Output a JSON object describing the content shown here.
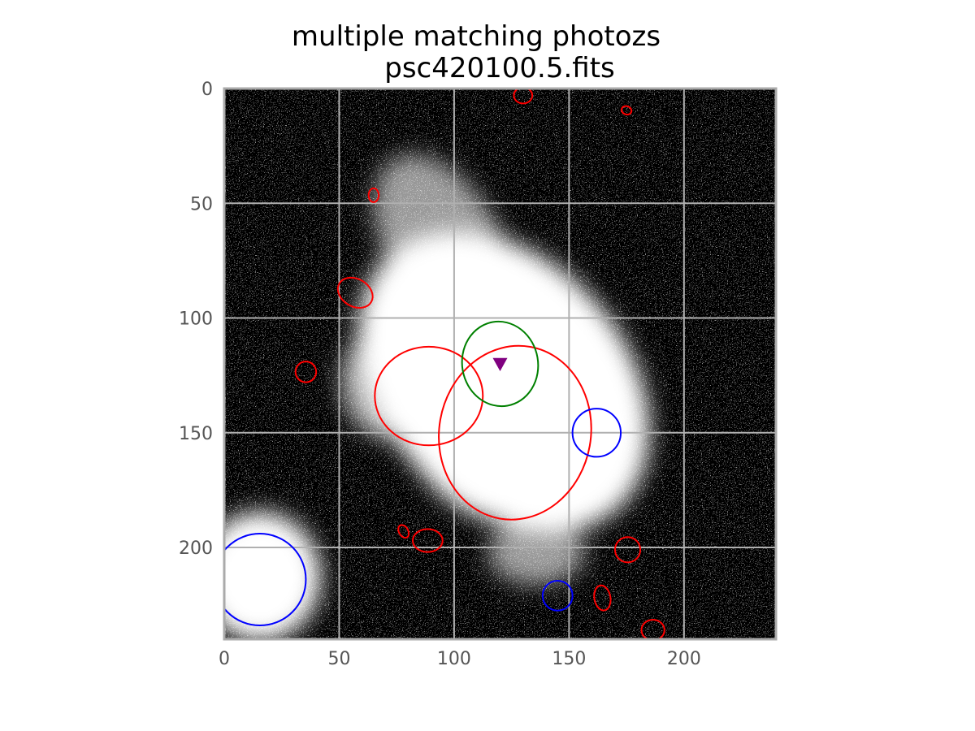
{
  "chart_data": {
    "type": "image",
    "title_lines": [
      "multiple matching photozs",
      "psc420100.5.fits"
    ],
    "xlim": [
      0,
      240
    ],
    "ylim": [
      240,
      0
    ],
    "y_inverted": true,
    "grid": true,
    "x_ticks": [
      0,
      50,
      100,
      150,
      200
    ],
    "y_ticks": [
      0,
      50,
      100,
      150,
      200
    ],
    "x_tick_labels": [
      "0",
      "50",
      "100",
      "150",
      "200"
    ],
    "y_tick_labels": [
      "0",
      "50",
      "100",
      "150",
      "200"
    ],
    "colors": {
      "red_ellipse": "#ff0000",
      "blue_circle": "#0000ff",
      "green_circle": "#008000",
      "marker": "#800080",
      "grid": "#b0b0b0",
      "frame": "#aaaaaa",
      "tick_label": "#555555"
    },
    "marker": {
      "shape": "down-triangle",
      "x": 120,
      "y": 120,
      "color": "#800080"
    },
    "green_ellipses": [
      {
        "x": 120,
        "y": 120,
        "rx": 16.5,
        "ry": 18.5,
        "angle": -10
      }
    ],
    "blue_circles": [
      {
        "x": 162,
        "y": 150,
        "r": 10.5
      },
      {
        "x": 15.5,
        "y": 214,
        "r": 20
      },
      {
        "x": 145,
        "y": 221,
        "r": 6.5
      }
    ],
    "red_ellipses": [
      {
        "x": 130,
        "y": 3,
        "rx": 4,
        "ry": 3.5,
        "angle": 0
      },
      {
        "x": 175,
        "y": 9.5,
        "rx": 2.2,
        "ry": 1.8,
        "angle": 20
      },
      {
        "x": 65,
        "y": 46.5,
        "rx": 2.2,
        "ry": 3,
        "angle": 0
      },
      {
        "x": 57,
        "y": 89,
        "rx": 8,
        "ry": 6,
        "angle": 30
      },
      {
        "x": 35.5,
        "y": 123.5,
        "rx": 4.5,
        "ry": 4.5,
        "angle": 0
      },
      {
        "x": 89,
        "y": 134,
        "rx": 23.5,
        "ry": 21.5,
        "angle": 0
      },
      {
        "x": 126.5,
        "y": 150,
        "rx": 33,
        "ry": 38,
        "angle": 10
      },
      {
        "x": 78,
        "y": 193,
        "rx": 2,
        "ry": 3,
        "angle": -30
      },
      {
        "x": 88.5,
        "y": 197,
        "rx": 6.5,
        "ry": 5,
        "angle": 0
      },
      {
        "x": 175.5,
        "y": 201,
        "rx": 5.5,
        "ry": 5.5,
        "angle": 0
      },
      {
        "x": 164.5,
        "y": 222,
        "rx": 3.5,
        "ry": 5.5,
        "angle": -10
      },
      {
        "x": 186.5,
        "y": 236,
        "rx": 5,
        "ry": 4.5,
        "angle": 0
      }
    ]
  }
}
